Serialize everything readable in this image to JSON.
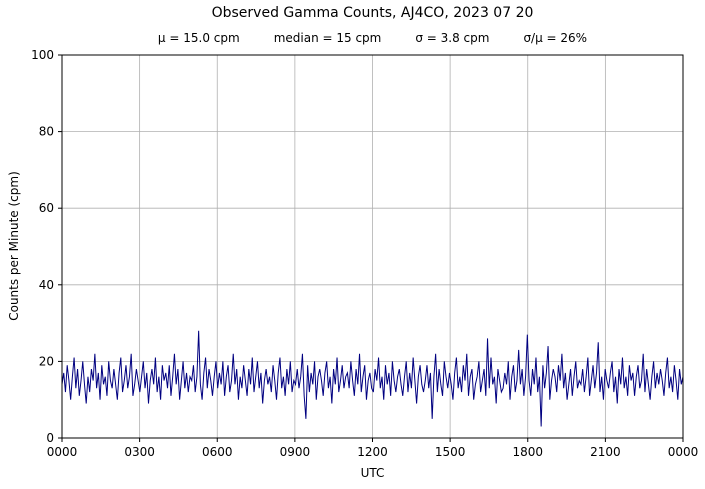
{
  "chart_data": {
    "type": "line",
    "title": "Observed Gamma Counts, AJ4CO, 2023 07 20",
    "stats": [
      "μ = 15.0 cpm",
      "median = 15 cpm",
      "σ = 3.8 cpm",
      "σ/μ = 26%"
    ],
    "xlabel": "UTC",
    "ylabel": "Counts per Minute (cpm)",
    "ylim": [
      0,
      100
    ],
    "xlim_minutes": [
      0,
      1440
    ],
    "y_ticks": [
      0,
      20,
      40,
      60,
      80,
      100
    ],
    "x_tick_minutes": [
      0,
      180,
      360,
      540,
      720,
      900,
      1080,
      1260,
      1440
    ],
    "x_tick_labels": [
      "0000",
      "0300",
      "0600",
      "0900",
      "1200",
      "1500",
      "1800",
      "2100",
      "0000"
    ],
    "grid": true,
    "legend": "none",
    "line_color": "#000080",
    "grid_color": "#b0b0b0",
    "frame_color": "#000000",
    "series_name": "gamma counts (cpm)",
    "values": [
      14,
      17,
      12,
      19,
      15,
      10,
      16,
      21,
      13,
      18,
      11,
      15,
      20,
      14,
      9,
      16,
      12,
      18,
      15,
      22,
      13,
      17,
      10,
      19,
      14,
      16,
      11,
      20,
      15,
      13,
      18,
      14,
      10,
      17,
      21,
      12,
      15,
      19,
      13,
      16,
      22,
      11,
      14,
      18,
      15,
      12,
      16,
      20,
      13,
      17,
      9,
      15,
      18,
      14,
      21,
      12,
      16,
      10,
      19,
      15,
      17,
      13,
      19,
      11,
      16,
      22,
      14,
      18,
      10,
      15,
      20,
      13,
      17,
      12,
      16,
      15,
      19,
      12,
      16,
      28,
      14,
      10,
      17,
      21,
      13,
      18,
      15,
      11,
      16,
      20,
      13,
      17,
      14,
      20,
      11,
      16,
      19,
      12,
      15,
      22,
      14,
      18,
      10,
      16,
      13,
      19,
      15,
      11,
      18,
      14,
      21,
      12,
      16,
      20,
      13,
      17,
      9,
      15,
      18,
      14,
      16,
      12,
      19,
      15,
      10,
      17,
      21,
      13,
      16,
      11,
      18,
      14,
      20,
      12,
      15,
      14,
      18,
      13,
      16,
      22,
      11,
      5,
      19,
      12,
      17,
      14,
      20,
      10,
      16,
      18,
      15,
      11,
      17,
      20,
      13,
      16,
      9,
      18,
      14,
      21,
      12,
      15,
      19,
      13,
      16,
      17,
      13,
      20,
      15,
      11,
      18,
      14,
      22,
      12,
      16,
      19,
      10,
      15,
      17,
      13,
      12,
      18,
      15,
      21,
      13,
      16,
      10,
      19,
      14,
      17,
      11,
      20,
      15,
      12,
      16,
      18,
      14,
      11,
      16,
      20,
      12,
      17,
      13,
      21,
      15,
      9,
      16,
      19,
      14,
      12,
      15,
      19,
      13,
      17,
      5,
      16,
      22,
      12,
      18,
      14,
      11,
      20,
      16,
      13,
      17,
      14,
      10,
      17,
      21,
      13,
      16,
      12,
      19,
      15,
      22,
      11,
      16,
      18,
      10,
      14,
      16,
      20,
      12,
      15,
      18,
      11,
      26,
      13,
      21,
      14,
      16,
      9,
      18,
      15,
      12,
      13,
      17,
      14,
      20,
      10,
      16,
      19,
      12,
      15,
      23,
      14,
      18,
      11,
      16,
      27,
      15,
      11,
      18,
      14,
      21,
      12,
      16,
      3,
      19,
      13,
      17,
      24,
      10,
      15,
      18,
      16,
      12,
      19,
      15,
      22,
      13,
      17,
      10,
      14,
      18,
      11,
      16,
      20,
      13,
      15,
      14,
      18,
      12,
      16,
      21,
      11,
      15,
      19,
      13,
      17,
      25,
      12,
      16,
      10,
      18,
      15,
      13,
      17,
      20,
      12,
      16,
      9,
      18,
      14,
      21,
      13,
      16,
      11,
      19,
      15,
      17,
      11,
      16,
      19,
      13,
      15,
      22,
      12,
      18,
      14,
      10,
      16,
      20,
      13,
      17,
      14,
      18,
      15,
      11,
      17,
      21,
      13,
      16,
      12,
      19,
      15,
      10,
      18,
      14,
      16
    ]
  }
}
